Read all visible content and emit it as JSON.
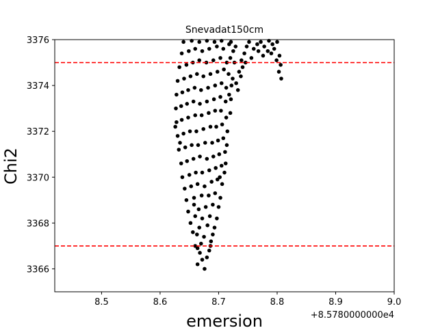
{
  "chart_data": {
    "type": "scatter",
    "title": "Snevadat150cm",
    "xlabel": "emersion",
    "ylabel": "Chi2",
    "x_offset_label": "+8.5780000000e4",
    "xlim": [
      8.42,
      9.0
    ],
    "ylim": [
      3365.0,
      3376.0
    ],
    "x_ticks": [
      "8.5",
      "8.6",
      "8.7",
      "8.8",
      "8.9",
      "9.0"
    ],
    "y_ticks": [
      "3366",
      "3368",
      "3370",
      "3372",
      "3374",
      "3376"
    ],
    "reference_lines": [
      {
        "y": 3375.0,
        "color": "#ff0000",
        "style": "dashed"
      },
      {
        "y": 3367.0,
        "color": "#ff0000",
        "style": "dashed"
      }
    ],
    "point_color": "#000000",
    "grid": false,
    "points": [
      [
        8.676,
        3366.0
      ],
      [
        8.672,
        3366.4
      ],
      [
        8.668,
        3366.7
      ],
      [
        8.68,
        3366.5
      ],
      [
        8.664,
        3366.9
      ],
      [
        8.684,
        3366.8
      ],
      [
        8.67,
        3367.1
      ],
      [
        8.66,
        3367.0
      ],
      [
        8.687,
        3367.2
      ],
      [
        8.675,
        3367.4
      ],
      [
        8.663,
        3367.5
      ],
      [
        8.69,
        3367.5
      ],
      [
        8.656,
        3367.6
      ],
      [
        8.667,
        3367.8
      ],
      [
        8.681,
        3367.9
      ],
      [
        8.693,
        3367.8
      ],
      [
        8.652,
        3368.0
      ],
      [
        8.672,
        3368.2
      ],
      [
        8.66,
        3368.3
      ],
      [
        8.685,
        3368.3
      ],
      [
        8.697,
        3368.2
      ],
      [
        8.648,
        3368.5
      ],
      [
        8.666,
        3368.6
      ],
      [
        8.678,
        3368.7
      ],
      [
        8.69,
        3368.8
      ],
      [
        8.7,
        3368.7
      ],
      [
        8.645,
        3369.0
      ],
      [
        8.658,
        3369.1
      ],
      [
        8.671,
        3369.2
      ],
      [
        8.683,
        3369.2
      ],
      [
        8.694,
        3369.3
      ],
      [
        8.703,
        3369.1
      ],
      [
        8.642,
        3369.5
      ],
      [
        8.653,
        3369.6
      ],
      [
        8.664,
        3369.7
      ],
      [
        8.676,
        3369.6
      ],
      [
        8.688,
        3369.8
      ],
      [
        8.698,
        3369.9
      ],
      [
        8.706,
        3369.7
      ],
      [
        8.638,
        3370.0
      ],
      [
        8.65,
        3370.1
      ],
      [
        8.661,
        3370.2
      ],
      [
        8.672,
        3370.2
      ],
      [
        8.684,
        3370.3
      ],
      [
        8.695,
        3370.4
      ],
      [
        8.705,
        3370.5
      ],
      [
        8.71,
        3370.2
      ],
      [
        8.636,
        3370.6
      ],
      [
        8.646,
        3370.7
      ],
      [
        8.657,
        3370.8
      ],
      [
        8.668,
        3370.9
      ],
      [
        8.68,
        3370.8
      ],
      [
        8.691,
        3370.9
      ],
      [
        8.701,
        3371.0
      ],
      [
        8.711,
        3371.1
      ],
      [
        8.632,
        3371.2
      ],
      [
        8.643,
        3371.3
      ],
      [
        8.654,
        3371.4
      ],
      [
        8.665,
        3371.4
      ],
      [
        8.677,
        3371.5
      ],
      [
        8.689,
        3371.5
      ],
      [
        8.699,
        3371.6
      ],
      [
        8.708,
        3371.7
      ],
      [
        8.714,
        3371.4
      ],
      [
        8.63,
        3371.8
      ],
      [
        8.64,
        3371.9
      ],
      [
        8.651,
        3372.0
      ],
      [
        8.662,
        3372.0
      ],
      [
        8.674,
        3372.1
      ],
      [
        8.686,
        3372.2
      ],
      [
        8.696,
        3372.2
      ],
      [
        8.706,
        3372.3
      ],
      [
        8.715,
        3372.0
      ],
      [
        8.628,
        3372.4
      ],
      [
        8.637,
        3372.5
      ],
      [
        8.648,
        3372.6
      ],
      [
        8.66,
        3372.7
      ],
      [
        8.671,
        3372.7
      ],
      [
        8.683,
        3372.8
      ],
      [
        8.694,
        3372.9
      ],
      [
        8.704,
        3372.9
      ],
      [
        8.713,
        3372.6
      ],
      [
        8.72,
        3372.8
      ],
      [
        8.627,
        3373.0
      ],
      [
        8.636,
        3373.1
      ],
      [
        8.646,
        3373.2
      ],
      [
        8.657,
        3373.3
      ],
      [
        8.668,
        3373.2
      ],
      [
        8.68,
        3373.3
      ],
      [
        8.692,
        3373.4
      ],
      [
        8.703,
        3373.5
      ],
      [
        8.712,
        3373.3
      ],
      [
        8.721,
        3373.4
      ],
      [
        8.628,
        3373.6
      ],
      [
        8.638,
        3373.7
      ],
      [
        8.648,
        3373.8
      ],
      [
        8.659,
        3373.9
      ],
      [
        8.67,
        3373.8
      ],
      [
        8.682,
        3373.9
      ],
      [
        8.694,
        3374.0
      ],
      [
        8.705,
        3374.1
      ],
      [
        8.713,
        3373.9
      ],
      [
        8.722,
        3374.0
      ],
      [
        8.63,
        3374.2
      ],
      [
        8.641,
        3374.3
      ],
      [
        8.652,
        3374.4
      ],
      [
        8.663,
        3374.5
      ],
      [
        8.674,
        3374.4
      ],
      [
        8.686,
        3374.5
      ],
      [
        8.698,
        3374.6
      ],
      [
        8.709,
        3374.7
      ],
      [
        8.717,
        3374.5
      ],
      [
        8.724,
        3374.3
      ],
      [
        8.633,
        3374.8
      ],
      [
        8.645,
        3374.9
      ],
      [
        8.656,
        3375.0
      ],
      [
        8.667,
        3375.1
      ],
      [
        8.679,
        3375.0
      ],
      [
        8.691,
        3375.1
      ],
      [
        8.703,
        3375.2
      ],
      [
        8.714,
        3375.0
      ],
      [
        8.72,
        3375.2
      ],
      [
        8.727,
        3375.0
      ],
      [
        8.637,
        3375.4
      ],
      [
        8.649,
        3375.5
      ],
      [
        8.66,
        3375.6
      ],
      [
        8.672,
        3375.5
      ],
      [
        8.684,
        3375.6
      ],
      [
        8.697,
        3375.7
      ],
      [
        8.708,
        3375.6
      ],
      [
        8.718,
        3375.8
      ],
      [
        8.725,
        3375.5
      ],
      [
        8.64,
        3375.9
      ],
      [
        8.654,
        3375.95
      ],
      [
        8.667,
        3375.9
      ],
      [
        8.68,
        3375.95
      ],
      [
        8.693,
        3375.9
      ],
      [
        8.705,
        3375.95
      ],
      [
        8.721,
        3375.9
      ],
      [
        8.729,
        3375.7
      ],
      [
        8.664,
        3366.2
      ],
      [
        8.686,
        3367.0
      ],
      [
        8.658,
        3368.8
      ],
      [
        8.702,
        3370.0
      ],
      [
        8.712,
        3370.6
      ],
      [
        8.634,
        3371.5
      ],
      [
        8.718,
        3373.6
      ],
      [
        8.626,
        3372.2
      ],
      [
        8.73,
        3374.1
      ],
      [
        8.735,
        3374.6
      ],
      [
        8.739,
        3375.1
      ],
      [
        8.744,
        3375.4
      ],
      [
        8.748,
        3375.7
      ],
      [
        8.752,
        3375.9
      ],
      [
        8.741,
        3374.8
      ],
      [
        8.733,
        3373.8
      ],
      [
        8.76,
        3375.6
      ],
      [
        8.766,
        3375.8
      ],
      [
        8.772,
        3375.9
      ],
      [
        8.778,
        3375.7
      ],
      [
        8.784,
        3375.5
      ],
      [
        8.79,
        3375.4
      ],
      [
        8.795,
        3375.6
      ],
      [
        8.8,
        3375.9
      ],
      [
        8.804,
        3375.3
      ],
      [
        8.806,
        3374.9
      ],
      [
        8.803,
        3374.6
      ],
      [
        8.807,
        3374.3
      ],
      [
        8.799,
        3375.1
      ],
      [
        8.792,
        3375.8
      ],
      [
        8.786,
        3375.95
      ],
      [
        8.776,
        3375.3
      ],
      [
        8.768,
        3375.5
      ],
      [
        8.756,
        3375.2
      ],
      [
        8.746,
        3375.0
      ],
      [
        8.738,
        3374.4
      ]
    ]
  }
}
